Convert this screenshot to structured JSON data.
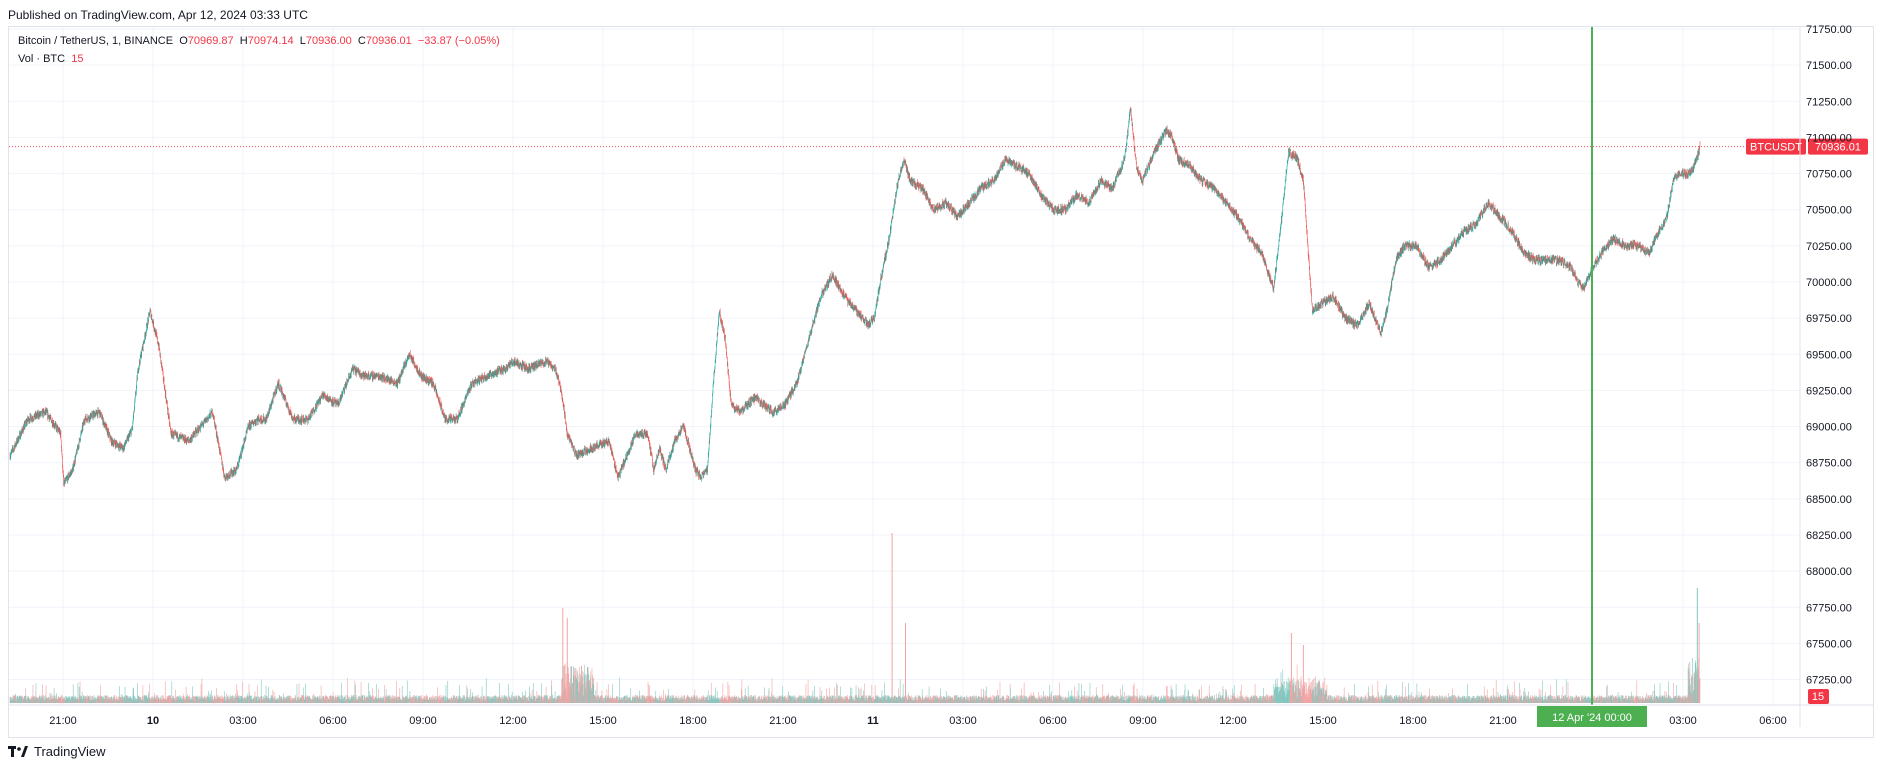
{
  "header": {
    "published": "Published on TradingView.com, Apr 12, 2024 03:33 UTC"
  },
  "legend": {
    "symbol": "Bitcoin / TetherUS, 1, BINANCE",
    "o_label": "O",
    "o": "70969.87",
    "h_label": "H",
    "h": "70974.14",
    "l_label": "L",
    "l": "70936.00",
    "c_label": "C",
    "c": "70936.01",
    "change": "−33.87 (−0.05%)",
    "vol_label": "Vol · BTC",
    "vol_value": "15"
  },
  "footer": {
    "brand": "TradingView",
    "logo_icon": "tradingview-logo-icon"
  },
  "colors": {
    "up": "#26a69a",
    "down": "#ef5350",
    "up_vol": "#80c8c0",
    "down_vol": "#f5a3a3",
    "marker": "#4caf50",
    "price_tag": "#f23645"
  },
  "chart_data": {
    "type": "candlestick",
    "symbol": "BTCUSDT",
    "interval": "1",
    "y_axis": {
      "min": 67150,
      "max": 71750,
      "ticks": [
        "71750.00",
        "71500.00",
        "71250.00",
        "71000.00",
        "70750.00",
        "70500.00",
        "70250.00",
        "70000.00",
        "69750.00",
        "69500.00",
        "69250.00",
        "69000.00",
        "68750.00",
        "68500.00",
        "68250.00",
        "68000.00",
        "67750.00",
        "67500.00",
        "67250.00"
      ]
    },
    "x_axis": {
      "ticks": [
        "21:00",
        "10",
        "03:00",
        "06:00",
        "09:00",
        "12:00",
        "15:00",
        "18:00",
        "21:00",
        "11",
        "03:00",
        "06:00",
        "09:00",
        "12:00",
        "15:00",
        "18:00",
        "21:00",
        "03:00",
        "06:00"
      ],
      "cursor_label": "12 Apr '24   00:00"
    },
    "last_price": {
      "label": "BTCUSDT",
      "value": "70936.01",
      "price": 70936.01
    },
    "volume_last": "15",
    "grid": true,
    "path_anchors": [
      [
        0,
        68800
      ],
      [
        60,
        69050
      ],
      [
        120,
        69100
      ],
      [
        170,
        68950
      ],
      [
        180,
        68600
      ],
      [
        210,
        68700
      ],
      [
        250,
        69050
      ],
      [
        300,
        69100
      ],
      [
        340,
        68900
      ],
      [
        380,
        68850
      ],
      [
        410,
        68980
      ],
      [
        430,
        69400
      ],
      [
        470,
        69800
      ],
      [
        500,
        69550
      ],
      [
        540,
        68950
      ],
      [
        600,
        68900
      ],
      [
        680,
        69100
      ],
      [
        720,
        68650
      ],
      [
        760,
        68700
      ],
      [
        800,
        69000
      ],
      [
        830,
        69050
      ],
      [
        860,
        69050
      ],
      [
        900,
        69300
      ],
      [
        950,
        69050
      ],
      [
        1000,
        69050
      ],
      [
        1050,
        69220
      ],
      [
        1100,
        69150
      ],
      [
        1150,
        69400
      ],
      [
        1190,
        69350
      ],
      [
        1240,
        69350
      ],
      [
        1300,
        69300
      ],
      [
        1340,
        69500
      ],
      [
        1380,
        69350
      ],
      [
        1420,
        69300
      ],
      [
        1460,
        69050
      ],
      [
        1500,
        69050
      ],
      [
        1550,
        69300
      ],
      [
        1600,
        69350
      ],
      [
        1660,
        69400
      ],
      [
        1690,
        69450
      ],
      [
        1740,
        69400
      ],
      [
        1800,
        69450
      ],
      [
        1830,
        69400
      ],
      [
        1850,
        69250
      ],
      [
        1870,
        68950
      ],
      [
        1900,
        68800
      ],
      [
        1950,
        68850
      ],
      [
        2010,
        68900
      ],
      [
        2040,
        68650
      ],
      [
        2070,
        68800
      ],
      [
        2100,
        68950
      ],
      [
        2140,
        68950
      ],
      [
        2160,
        68700
      ],
      [
        2180,
        68850
      ],
      [
        2200,
        68700
      ],
      [
        2230,
        68900
      ],
      [
        2260,
        69000
      ],
      [
        2300,
        68700
      ],
      [
        2320,
        68650
      ],
      [
        2340,
        68700
      ],
      [
        2360,
        69300
      ],
      [
        2380,
        69800
      ],
      [
        2400,
        69600
      ],
      [
        2420,
        69150
      ],
      [
        2450,
        69100
      ],
      [
        2500,
        69200
      ],
      [
        2560,
        69100
      ],
      [
        2600,
        69150
      ],
      [
        2640,
        69300
      ],
      [
        2680,
        69600
      ],
      [
        2720,
        69900
      ],
      [
        2760,
        70050
      ],
      [
        2800,
        69900
      ],
      [
        2840,
        69800
      ],
      [
        2880,
        69700
      ],
      [
        2900,
        69750
      ],
      [
        2920,
        70000
      ],
      [
        2950,
        70300
      ],
      [
        2980,
        70700
      ],
      [
        3000,
        70850
      ],
      [
        3020,
        70700
      ],
      [
        3060,
        70650
      ],
      [
        3100,
        70500
      ],
      [
        3140,
        70550
      ],
      [
        3180,
        70450
      ],
      [
        3220,
        70550
      ],
      [
        3260,
        70650
      ],
      [
        3300,
        70700
      ],
      [
        3340,
        70850
      ],
      [
        3380,
        70800
      ],
      [
        3420,
        70750
      ],
      [
        3460,
        70600
      ],
      [
        3500,
        70500
      ],
      [
        3540,
        70500
      ],
      [
        3580,
        70600
      ],
      [
        3620,
        70550
      ],
      [
        3660,
        70700
      ],
      [
        3700,
        70650
      ],
      [
        3740,
        70850
      ],
      [
        3760,
        71200
      ],
      [
        3780,
        70800
      ],
      [
        3800,
        70700
      ],
      [
        3840,
        70900
      ],
      [
        3880,
        71050
      ],
      [
        3900,
        71000
      ],
      [
        3920,
        70850
      ],
      [
        3960,
        70800
      ],
      [
        4000,
        70700
      ],
      [
        4040,
        70650
      ],
      [
        4080,
        70550
      ],
      [
        4120,
        70450
      ],
      [
        4160,
        70300
      ],
      [
        4200,
        70200
      ],
      [
        4240,
        69950
      ],
      [
        4270,
        70500
      ],
      [
        4290,
        70900
      ],
      [
        4320,
        70850
      ],
      [
        4340,
        70700
      ],
      [
        4370,
        69800
      ],
      [
        4400,
        69850
      ],
      [
        4440,
        69900
      ],
      [
        4480,
        69750
      ],
      [
        4520,
        69700
      ],
      [
        4560,
        69850
      ],
      [
        4600,
        69650
      ],
      [
        4620,
        69800
      ],
      [
        4650,
        70150
      ],
      [
        4680,
        70250
      ],
      [
        4720,
        70250
      ],
      [
        4760,
        70100
      ],
      [
        4800,
        70150
      ],
      [
        4840,
        70250
      ],
      [
        4880,
        70350
      ],
      [
        4920,
        70400
      ],
      [
        4960,
        70550
      ],
      [
        5000,
        70450
      ],
      [
        5040,
        70350
      ],
      [
        5080,
        70200
      ],
      [
        5120,
        70150
      ],
      [
        5160,
        70150
      ],
      [
        5200,
        70150
      ],
      [
        5240,
        70100
      ],
      [
        5260,
        70000
      ],
      [
        5280,
        69950
      ],
      [
        5300,
        70050
      ],
      [
        5340,
        70200
      ],
      [
        5380,
        70300
      ],
      [
        5420,
        70250
      ],
      [
        5460,
        70250
      ],
      [
        5500,
        70200
      ],
      [
        5520,
        70300
      ],
      [
        5560,
        70450
      ],
      [
        5580,
        70700
      ],
      [
        5600,
        70750
      ],
      [
        5640,
        70750
      ],
      [
        5660,
        70850
      ],
      [
        5671,
        70936
      ]
    ]
  }
}
